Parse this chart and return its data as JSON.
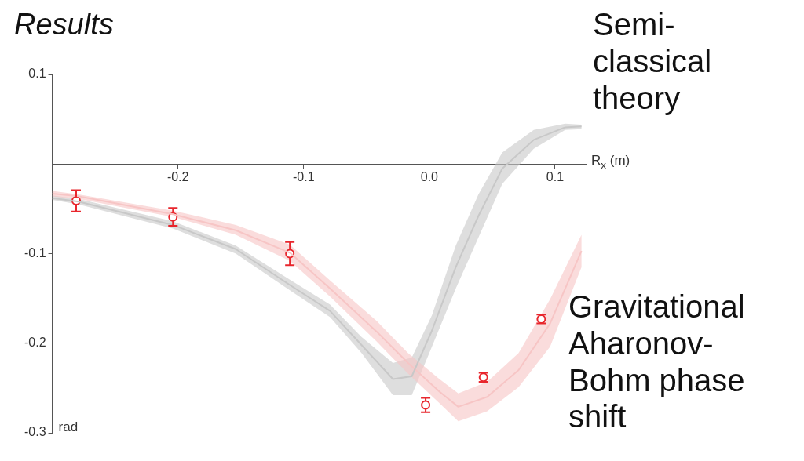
{
  "chart_data": {
    "type": "line",
    "title": "Results",
    "xlabel": "R$_{x}$ (m)",
    "ylabel": "rad",
    "xlim": [
      -0.3,
      0.125
    ],
    "xticks": [
      -0.2,
      -0.1,
      {
        "value": 0,
        "label": "0.0"
      },
      0.1
    ],
    "ylim": [
      -0.3,
      0.1
    ],
    "yticks": [
      -0.3,
      -0.2,
      -0.1,
      0.1
    ],
    "grid": false,
    "series": [
      {
        "name": "Semi-classical theory",
        "color": "#c8c8c8",
        "x": [
          -0.3,
          -0.279,
          -0.204,
          -0.154,
          -0.111,
          -0.079,
          -0.054,
          -0.029,
          -0.014,
          0.002,
          0.021,
          0.039,
          0.058,
          0.083,
          0.108,
          0.121
        ],
        "values": [
          -0.038,
          -0.042,
          -0.068,
          -0.095,
          -0.135,
          -0.164,
          -0.202,
          -0.24,
          -0.237,
          -0.186,
          -0.115,
          -0.058,
          -0.005,
          0.027,
          0.041,
          0.042
        ],
        "upper": [
          -0.035,
          -0.039,
          -0.064,
          -0.091,
          -0.129,
          -0.157,
          -0.193,
          -0.222,
          -0.216,
          -0.169,
          -0.091,
          -0.034,
          0.013,
          0.038,
          0.045,
          0.044
        ],
        "lower": [
          -0.04,
          -0.045,
          -0.072,
          -0.1,
          -0.141,
          -0.171,
          -0.211,
          -0.258,
          -0.258,
          -0.204,
          -0.139,
          -0.082,
          -0.022,
          0.017,
          0.038,
          0.039
        ]
      },
      {
        "name": "Gravitational Aharonov-Bohm phase shift",
        "color": "#f7c5c5",
        "x": [
          -0.3,
          -0.279,
          -0.204,
          -0.154,
          -0.111,
          -0.079,
          -0.042,
          -0.017,
          0.008,
          0.023,
          0.046,
          0.071,
          0.096,
          0.121
        ],
        "values": [
          -0.033,
          -0.036,
          -0.056,
          -0.074,
          -0.099,
          -0.139,
          -0.187,
          -0.222,
          -0.254,
          -0.271,
          -0.26,
          -0.23,
          -0.178,
          -0.097
        ],
        "upper": [
          -0.03,
          -0.034,
          -0.052,
          -0.068,
          -0.09,
          -0.13,
          -0.175,
          -0.211,
          -0.24,
          -0.256,
          -0.243,
          -0.211,
          -0.151,
          -0.079
        ],
        "lower": [
          -0.036,
          -0.039,
          -0.059,
          -0.079,
          -0.108,
          -0.148,
          -0.198,
          -0.234,
          -0.267,
          -0.287,
          -0.276,
          -0.249,
          -0.204,
          -0.115
        ]
      },
      {
        "type": "scatter",
        "color": "#e8262d",
        "marker": "circle",
        "x": [
          -0.281,
          -0.204,
          -0.111,
          -0.003,
          0.043,
          0.089
        ],
        "values": [
          -0.041,
          -0.059,
          -0.1,
          -0.269,
          -0.238,
          -0.173
        ],
        "errors": [
          0.012,
          0.01,
          0.013,
          0.008,
          0.005,
          0.005
        ]
      }
    ]
  }
}
